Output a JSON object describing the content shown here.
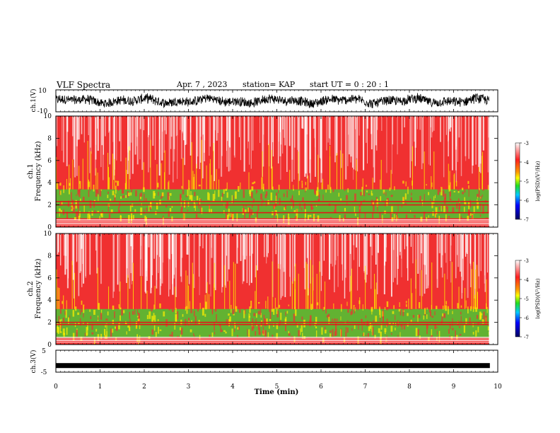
{
  "header": {
    "title": "VLF Spectra",
    "date": "Apr. 7 , 2023",
    "station": "station= KAP",
    "start": "start UT = 0 : 20 : 1"
  },
  "chart_data": [
    {
      "type": "line",
      "panel": "ch1-waveform",
      "ylabel": "ch.1(V)",
      "ylim": [
        -10,
        10
      ],
      "yticks": [
        "10",
        "-10"
      ],
      "xlim": [
        0,
        10
      ],
      "series_color": "#000000",
      "description_values": {
        "approx_amplitude_range_V": [
          -5,
          5
        ]
      }
    },
    {
      "type": "heatmap",
      "panel": "ch1-spectrogram",
      "ylabel_line1": "ch.1",
      "ylabel_line2": "Frequency (kHz)",
      "ylim": [
        0,
        10
      ],
      "yticks": [
        "0",
        "2",
        "4",
        "6",
        "8",
        "10"
      ],
      "xlim": [
        0,
        10
      ],
      "data_end_min": 9.8,
      "colorbar": {
        "label": "log(PSD)(V²/Hz)",
        "range": [
          -7,
          -3
        ],
        "ticks": [
          "-3",
          "-4",
          "-5",
          "-6",
          "-7"
        ]
      },
      "bands_kHz": {
        "green_region": [
          0.8,
          3.4
        ],
        "red_lines": [
          1.3,
          2.0,
          2.3
        ]
      }
    },
    {
      "type": "heatmap",
      "panel": "ch2-spectrogram",
      "ylabel_line1": "ch.2",
      "ylabel_line2": "Frequency (kHz)",
      "ylim": [
        0,
        10
      ],
      "yticks": [
        "0",
        "2",
        "4",
        "6",
        "8",
        "10"
      ],
      "xlim": [
        0,
        10
      ],
      "data_end_min": 9.8,
      "colorbar": {
        "label": "log(PSD)(V²/Hz)",
        "range": [
          -7,
          -3
        ],
        "ticks": [
          "-3",
          "-4",
          "-5",
          "-6",
          "-7"
        ]
      },
      "bands_kHz": {
        "green_region": [
          0.6,
          3.2
        ],
        "red_lines": [
          1.8,
          2.0
        ]
      }
    },
    {
      "type": "line",
      "panel": "ch3-waveform",
      "ylabel": "ch.3(V)",
      "ylim": [
        -5,
        5
      ],
      "yticks": [
        "5",
        "-5"
      ],
      "xlim": [
        0,
        10
      ],
      "series_color": "#000000",
      "description_values": {
        "approx_level_V": -2
      }
    }
  ],
  "xaxis": {
    "label": "Time (min)",
    "ticks": [
      "0",
      "1",
      "2",
      "3",
      "4",
      "5",
      "6",
      "7",
      "8",
      "9",
      "10"
    ]
  },
  "colors": {
    "spectro_background": "#f03030",
    "green": "#33dd33",
    "yellow": "#ffee00"
  }
}
